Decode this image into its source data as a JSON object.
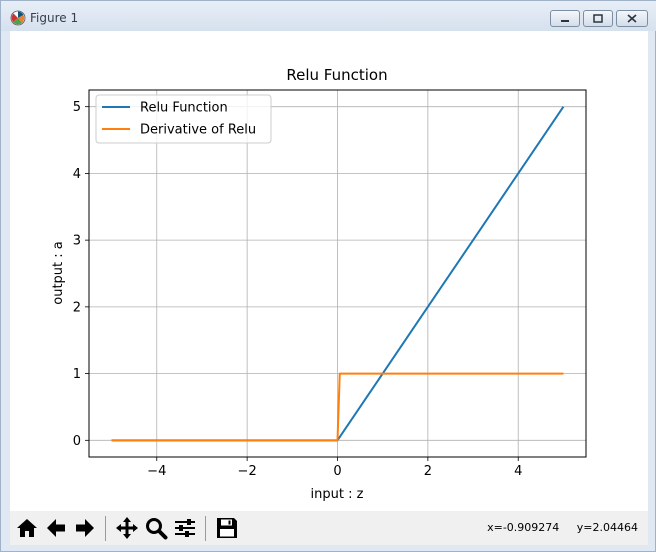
{
  "window": {
    "title": "Figure 1",
    "buttons": [
      "minimize",
      "maximize",
      "close"
    ]
  },
  "toolbar": {
    "icons": [
      "home-icon",
      "back-arrow-icon",
      "forward-arrow-icon",
      "pan-icon",
      "zoom-icon",
      "subplots-icon",
      "save-icon"
    ],
    "coords": "x=-0.909274     y=2.04464"
  },
  "colors": {
    "series_blue": "#1f77b4",
    "series_orange": "#ff7f0e"
  },
  "chart_data": {
    "type": "line",
    "title": "Relu Function",
    "xlabel": "input : z",
    "ylabel": "output : a",
    "xlim": [
      -5.5,
      5.5
    ],
    "ylim": [
      -0.25,
      5.25
    ],
    "xticks": [
      -4,
      -2,
      0,
      2,
      4
    ],
    "xtick_labels": [
      "−4",
      "−2",
      "0",
      "2",
      "4"
    ],
    "yticks": [
      0,
      1,
      2,
      3,
      4,
      5
    ],
    "ytick_labels": [
      "0",
      "1",
      "2",
      "3",
      "4",
      "5"
    ],
    "grid": true,
    "legend": "upper-left",
    "series": [
      {
        "name": "Relu Function",
        "color": "#1f77b4",
        "x": [
          -5,
          -4,
          -3,
          -2,
          -1,
          0,
          1,
          2,
          3,
          4,
          5
        ],
        "y": [
          0,
          0,
          0,
          0,
          0,
          0,
          1,
          2,
          3,
          4,
          5
        ]
      },
      {
        "name": "Derivative of Relu",
        "color": "#ff7f0e",
        "x": [
          -5,
          -4,
          -3,
          -2,
          -1,
          0,
          0.05,
          1,
          2,
          3,
          4,
          5
        ],
        "y": [
          0,
          0,
          0,
          0,
          0,
          0,
          1,
          1,
          1,
          1,
          1,
          1
        ]
      }
    ]
  }
}
